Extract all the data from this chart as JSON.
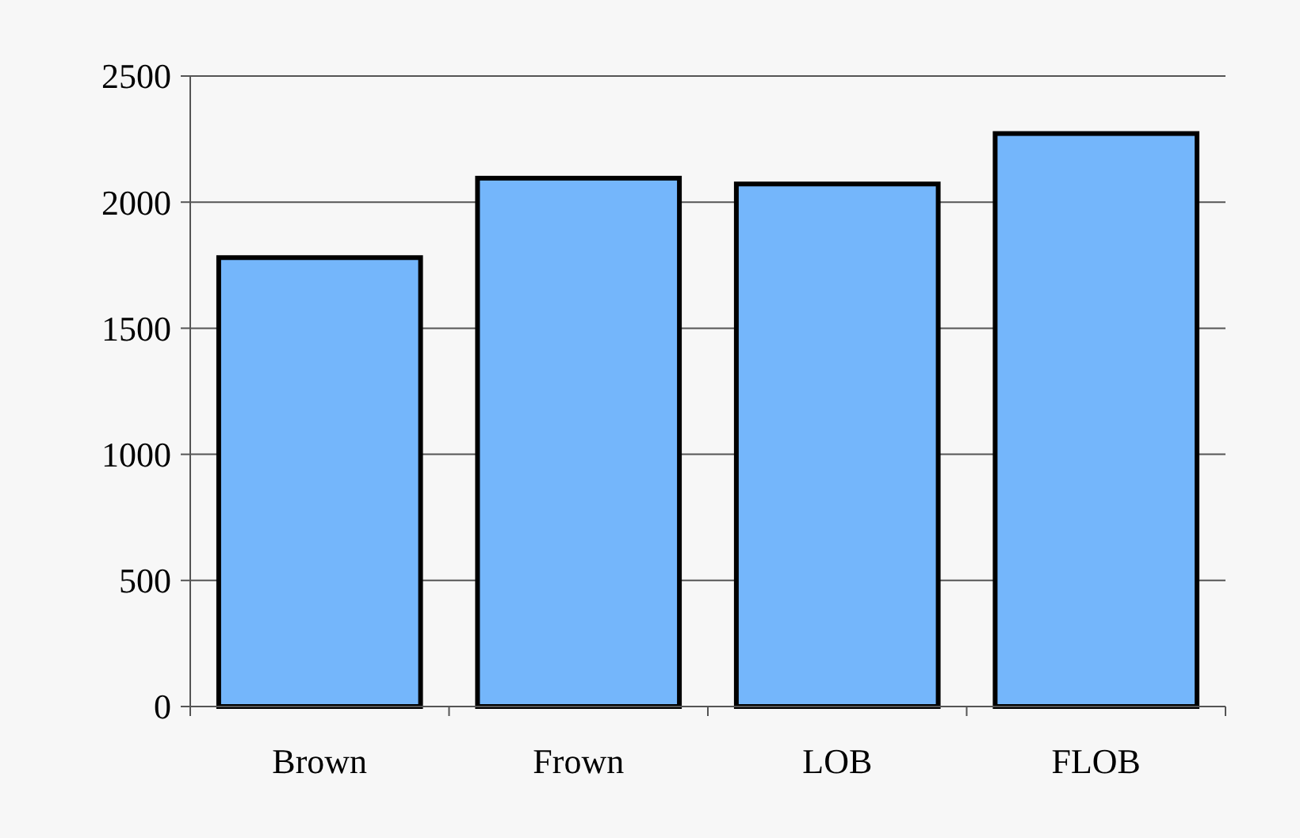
{
  "chart_data": {
    "type": "bar",
    "categories": [
      "Brown",
      "Frown",
      "LOB",
      "FLOB"
    ],
    "values": [
      1780,
      2095,
      2072,
      2272
    ],
    "color": "#74b6fb",
    "ylim": [
      0,
      2500
    ],
    "yticks": [
      0,
      500,
      1000,
      1500,
      2000,
      2500
    ],
    "grid": "y"
  }
}
